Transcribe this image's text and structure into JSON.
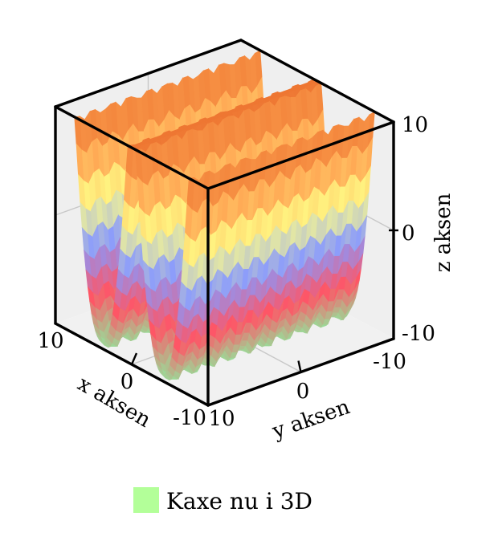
{
  "chart_data": {
    "type": "surface",
    "title": "",
    "xlabel": "x aksen",
    "ylabel": "y aksen",
    "zlabel": "z aksen",
    "xlim": [
      -10,
      10
    ],
    "ylim": [
      -10,
      10
    ],
    "zlim": [
      -10,
      10
    ],
    "xticks": [
      "-10",
      "0",
      "10"
    ],
    "yticks": [
      "-10",
      "0",
      "10"
    ],
    "zticks": [
      "-10",
      "0",
      "10"
    ],
    "grid": true,
    "legend_position": "bottom-center",
    "series": [
      {
        "name": "Kaxe nu i 3D",
        "legend_color": "#b3ff99",
        "colormap": [
          "#99dd99",
          "#ff5566",
          "#8899ff",
          "#ffff88",
          "#ffaa55",
          "#ee7733"
        ],
        "x_range": [
          -7.5,
          7.5
        ],
        "y_range": [
          -10,
          10
        ],
        "troughs_x": [
          -4,
          4
        ],
        "z_min": -10,
        "z_max": 10,
        "ripples_along_y": 10
      }
    ]
  }
}
